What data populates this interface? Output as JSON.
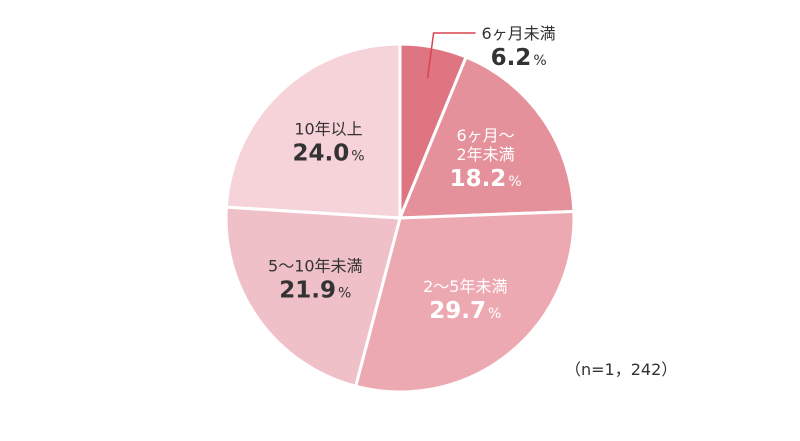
{
  "chart_data": {
    "type": "pie",
    "start": "12 o'clock",
    "direction": "clockwise",
    "slices": [
      {
        "label": "6ヶ月未満",
        "value": 6.2,
        "color": "#e07582",
        "label_color": "#333333",
        "label_position": "outside-callout"
      },
      {
        "label": "6ヶ月～\n2年未満",
        "value": 18.2,
        "color": "#e5919b",
        "label_color": "#ffffff",
        "label_position": "inside"
      },
      {
        "label": "2～5年未満",
        "value": 29.7,
        "color": "#eda9b2",
        "label_color": "#ffffff",
        "label_position": "inside"
      },
      {
        "label": "5～10年未満",
        "value": 21.9,
        "color": "#f0c0c8",
        "label_color": "#333333",
        "label_position": "inside"
      },
      {
        "label": "10年以上",
        "value": 24.0,
        "color": "#f5d3d9",
        "label_color": "#333333",
        "label_position": "inside"
      }
    ],
    "value_suffix": "%",
    "callout_color": "#d9434f",
    "sample_note": "（n=1，242）"
  }
}
